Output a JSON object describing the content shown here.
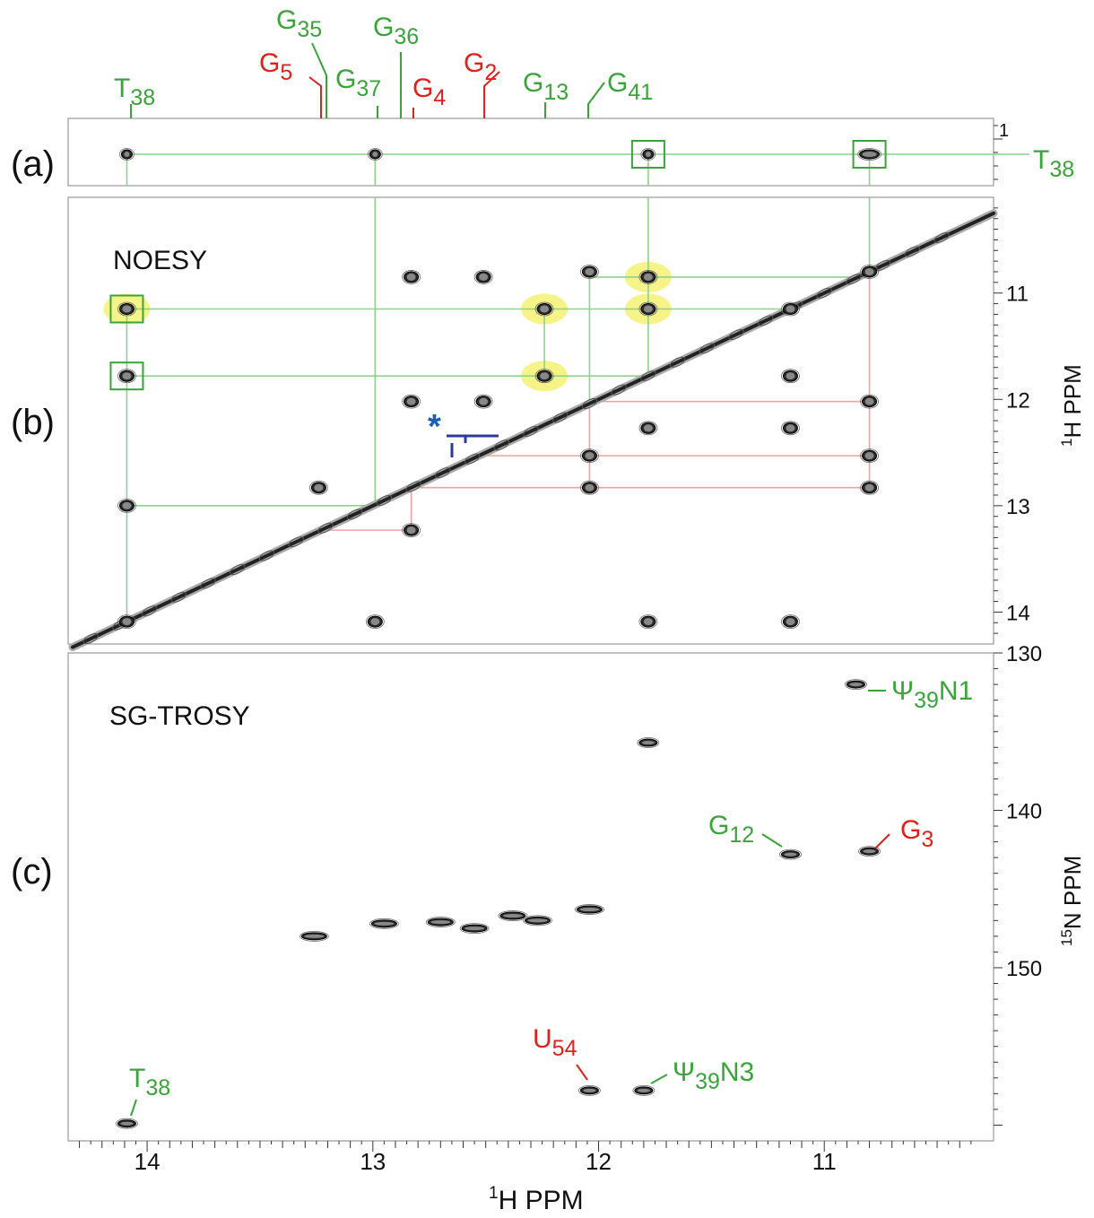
{
  "chart_data": {
    "type": "scatter",
    "x_axis": {
      "label_base": "H PPM",
      "label_super": "1",
      "range": [
        14.35,
        10.25
      ],
      "reversed": true,
      "ticks": [
        14,
        13,
        12,
        11
      ],
      "tick_labels": [
        "14",
        "13",
        "12",
        "11"
      ]
    },
    "panels": {
      "a": {
        "label": "(a)",
        "y_ticks": [
          1
        ],
        "y_tick_labels": [
          "1"
        ],
        "peaks": [
          {
            "x": 14.09,
            "y": 1.2
          },
          {
            "x": 12.99,
            "y": 1.2
          },
          {
            "x": 11.78,
            "y": 1.2,
            "boxed": true
          },
          {
            "x": 10.8,
            "y": 1.2,
            "boxed": true
          }
        ],
        "side_label": {
          "base": "T",
          "sub": "38"
        },
        "top_labels": [
          {
            "base": "T",
            "sub": "38",
            "x": 14.09,
            "color": "#3aa43a"
          },
          {
            "base": "G",
            "sub": "5",
            "x": 13.24,
            "color": "#e0201a"
          },
          {
            "base": "G",
            "sub": "35",
            "x": 13.21,
            "color": "#3aa43a"
          },
          {
            "base": "G",
            "sub": "37",
            "x": 12.99,
            "color": "#3aa43a"
          },
          {
            "base": "G",
            "sub": "36",
            "x": 12.88,
            "color": "#3aa43a"
          },
          {
            "base": "G",
            "sub": "4",
            "x": 12.83,
            "color": "#e0201a"
          },
          {
            "base": "G",
            "sub": "2",
            "x": 12.51,
            "color": "#e0201a"
          },
          {
            "base": "G",
            "sub": "13",
            "x": 12.24,
            "color": "#3aa43a"
          },
          {
            "base": "G",
            "sub": "41",
            "x": 12.04,
            "color": "#3aa43a"
          }
        ]
      },
      "b": {
        "label": "(b)",
        "title": "NOESY",
        "y_axis_label_base": "H PPM",
        "y_axis_label_super": "1",
        "y_range": [
          10.1,
          14.3
        ],
        "y_ticks": [
          11,
          12,
          13,
          14
        ],
        "y_tick_labels": [
          "11",
          "12",
          "13",
          "14"
        ],
        "diagonal": [
          14.33,
          10.25
        ],
        "cross_peaks": [
          {
            "x": 14.09,
            "y": 11.15,
            "highlight": true,
            "boxed": true
          },
          {
            "x": 14.09,
            "y": 11.78,
            "boxed": true
          },
          {
            "x": 14.09,
            "y": 13.0
          },
          {
            "x": 14.09,
            "y": 14.09
          },
          {
            "x": 12.24,
            "y": 11.15,
            "highlight": true
          },
          {
            "x": 12.24,
            "y": 11.78,
            "highlight": true
          },
          {
            "x": 11.78,
            "y": 10.85,
            "highlight": true
          },
          {
            "x": 11.78,
            "y": 11.15,
            "highlight": true
          },
          {
            "x": 12.83,
            "y": 10.85
          },
          {
            "x": 12.51,
            "y": 10.85
          },
          {
            "x": 12.04,
            "y": 10.8
          },
          {
            "x": 12.83,
            "y": 12.02
          },
          {
            "x": 12.51,
            "y": 12.02
          },
          {
            "x": 11.78,
            "y": 12.27
          },
          {
            "x": 11.15,
            "y": 12.27
          },
          {
            "x": 10.8,
            "y": 12.02
          },
          {
            "x": 11.15,
            "y": 11.78
          },
          {
            "x": 12.04,
            "y": 12.53
          },
          {
            "x": 10.8,
            "y": 12.53
          },
          {
            "x": 12.04,
            "y": 12.83
          },
          {
            "x": 10.8,
            "y": 12.83
          },
          {
            "x": 12.83,
            "y": 13.23
          },
          {
            "x": 13.24,
            "y": 12.83
          },
          {
            "x": 12.99,
            "y": 14.09
          },
          {
            "x": 11.78,
            "y": 14.09
          },
          {
            "x": 11.15,
            "y": 14.09
          },
          {
            "x": 11.15,
            "y": 11.15
          },
          {
            "x": 10.8,
            "y": 10.8
          }
        ],
        "asterisk": {
          "x": 12.71,
          "y": 12.25,
          "symbol": "*"
        },
        "green_paths": [
          [
            [
              14.09,
              14.09
            ],
            [
              14.09,
              11.15
            ],
            [
              11.15,
              11.15
            ]
          ],
          [
            [
              14.09,
              11.78
            ],
            [
              11.78,
              11.78
            ]
          ],
          [
            [
              14.09,
              13.0
            ],
            [
              13.0,
              13.0
            ]
          ],
          [
            [
              12.99,
              13.0
            ],
            [
              12.99,
              10.1
            ]
          ],
          [
            [
              12.24,
              11.78
            ],
            [
              12.24,
              11.15
            ]
          ],
          [
            [
              11.78,
              11.78
            ],
            [
              11.78,
              10.1
            ]
          ],
          [
            [
              10.8,
              10.8
            ],
            [
              10.8,
              10.1
            ]
          ],
          [
            [
              12.04,
              12.04
            ],
            [
              12.04,
              10.85
            ],
            [
              10.85,
              10.85
            ]
          ]
        ],
        "red_paths": [
          [
            [
              13.24,
              13.23
            ],
            [
              12.83,
              13.23
            ],
            [
              12.83,
              12.83
            ],
            [
              10.8,
              12.83
            ],
            [
              10.8,
              10.8
            ]
          ],
          [
            [
              12.04,
              12.83
            ],
            [
              12.04,
              12.02
            ],
            [
              10.8,
              12.02
            ]
          ],
          [
            [
              12.51,
              12.53
            ],
            [
              10.8,
              12.53
            ]
          ]
        ]
      },
      "c": {
        "label": "(c)",
        "title": "SG-TROSY",
        "y_axis_label_base": "N PPM",
        "y_axis_label_super": "15",
        "y_range": [
          130,
          161
        ],
        "y_ticks": [
          130,
          140,
          150
        ],
        "y_tick_labels": [
          "130",
          "140",
          "150"
        ],
        "peaks": [
          {
            "x": 10.86,
            "y": 132.0
          },
          {
            "x": 11.15,
            "y": 142.8
          },
          {
            "x": 10.8,
            "y": 142.6
          },
          {
            "x": 13.26,
            "y": 148.0
          },
          {
            "x": 12.95,
            "y": 147.2
          },
          {
            "x": 12.7,
            "y": 147.1
          },
          {
            "x": 12.55,
            "y": 147.5
          },
          {
            "x": 12.38,
            "y": 146.7
          },
          {
            "x": 12.27,
            "y": 147.0
          },
          {
            "x": 12.04,
            "y": 146.3
          },
          {
            "x": 12.04,
            "y": 157.8
          },
          {
            "x": 11.8,
            "y": 157.8
          },
          {
            "x": 14.09,
            "y": 159.9
          },
          {
            "x": 11.78,
            "y": 135.7
          }
        ],
        "labels": [
          {
            "base": "Ψ",
            "sub": "39",
            "tail": "N1",
            "color": "#3aa43a"
          },
          {
            "base": "G",
            "sub": "12",
            "tail": "",
            "color": "#3aa43a"
          },
          {
            "base": "G",
            "sub": "3",
            "tail": "",
            "color": "#e0201a"
          },
          {
            "base": "U",
            "sub": "54",
            "tail": "",
            "color": "#e0201a"
          },
          {
            "base": "Ψ",
            "sub": "39",
            "tail": "N3",
            "color": "#3aa43a"
          },
          {
            "base": "T",
            "sub": "38",
            "tail": "",
            "color": "#3aa43a"
          }
        ]
      }
    }
  },
  "colors": {
    "assignment_green": "#3aa43a",
    "assignment_red": "#e0201a",
    "path_green": "#8fd28f",
    "path_red": "#f3a0a0",
    "highlight": "#f4f06a",
    "asterisk": "#1a5fb4",
    "peak": "#111111"
  }
}
